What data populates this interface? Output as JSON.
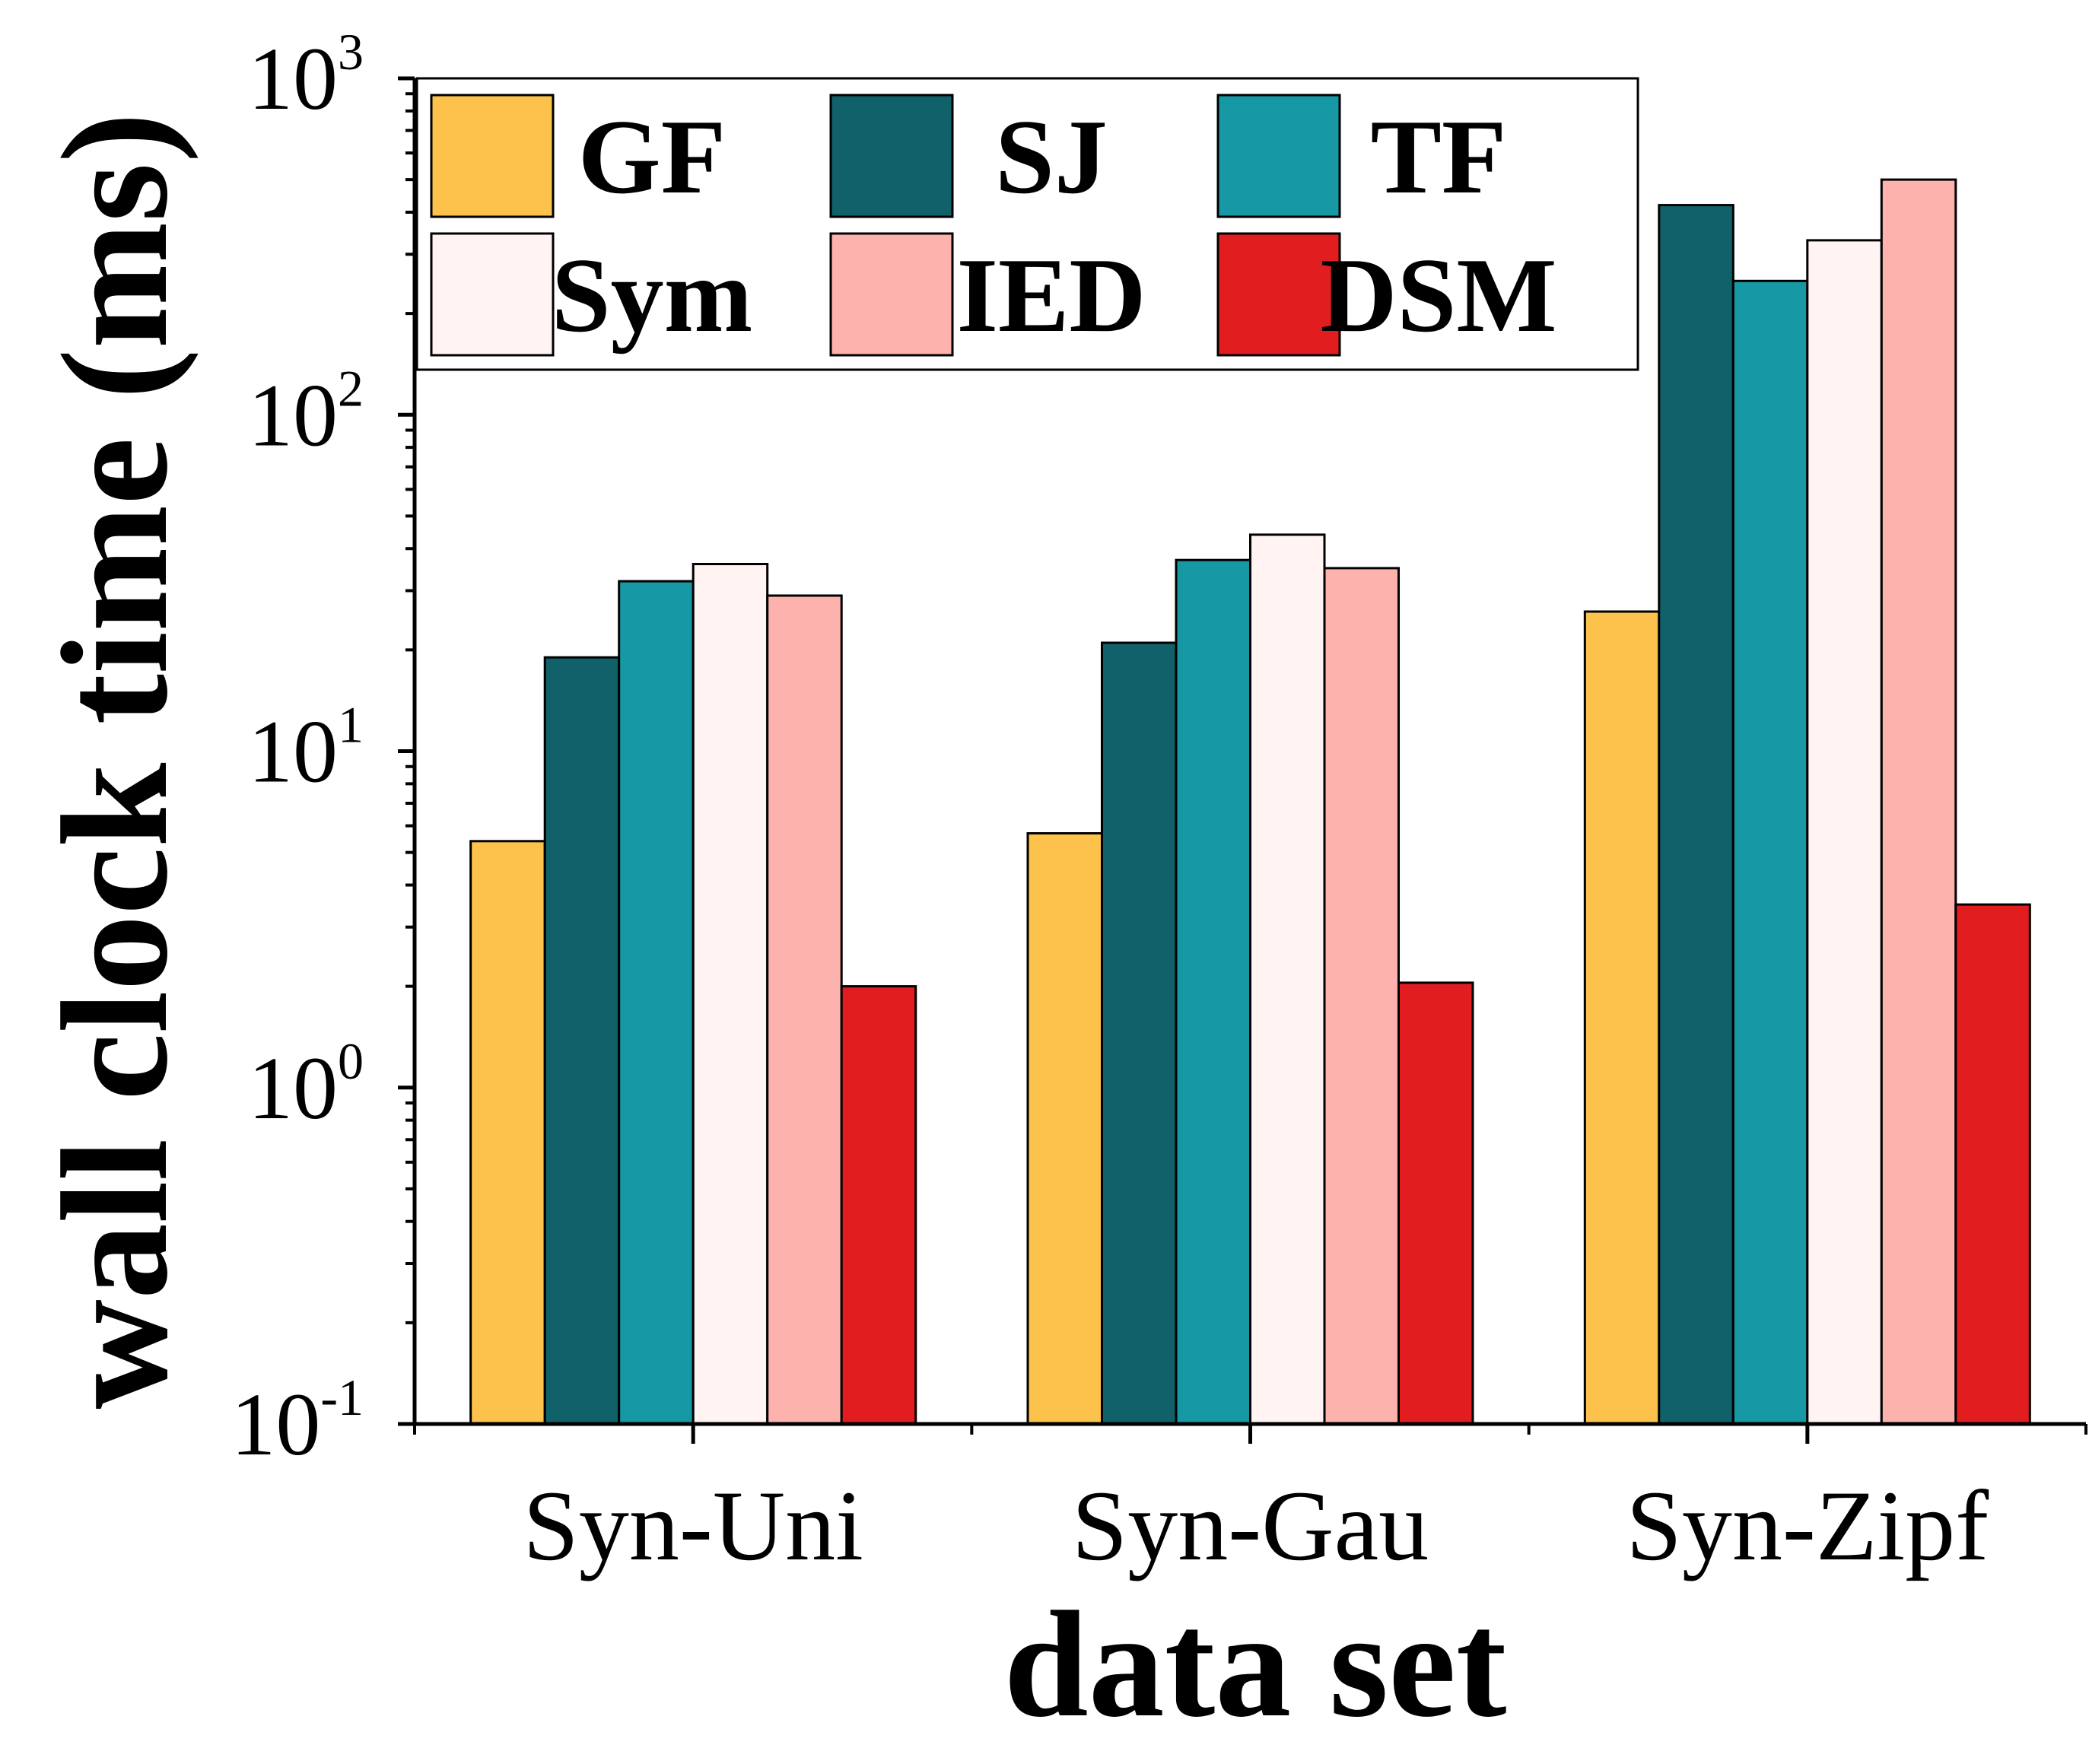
{
  "chart_data": {
    "type": "bar",
    "yscale": "log",
    "categories": [
      "Syn-Uni",
      "Syn-Gau",
      "Syn-Zipf"
    ],
    "series": [
      {
        "name": "GF",
        "color": "#fdc24c",
        "values": [
          5.4,
          5.7,
          26
        ]
      },
      {
        "name": "SJ",
        "color": "#10616a",
        "values": [
          19,
          21,
          420
        ]
      },
      {
        "name": "TF",
        "color": "#1798a5",
        "values": [
          32,
          37,
          250
        ]
      },
      {
        "name": "Sym",
        "color": "#fff4f1",
        "values": [
          36,
          44,
          330
        ]
      },
      {
        "name": "IED",
        "color": "#fdb2ae",
        "values": [
          29,
          35,
          500
        ]
      },
      {
        "name": "DSM",
        "color": "#e21d20",
        "values": [
          2.0,
          2.05,
          3.5
        ]
      }
    ],
    "title": "",
    "xlabel": "data set",
    "ylabel": "wall clock time (ms)",
    "ylim": [
      0.1,
      1000
    ],
    "yticks": [
      {
        "value": 0.1,
        "base": "10",
        "exp": "-1"
      },
      {
        "value": 1,
        "base": "10",
        "exp": "0"
      },
      {
        "value": 10,
        "base": "10",
        "exp": "1"
      },
      {
        "value": 100,
        "base": "10",
        "exp": "2"
      },
      {
        "value": 1000,
        "base": "10",
        "exp": "3"
      }
    ],
    "legend": {
      "position": "top-left",
      "columns": 3
    }
  }
}
